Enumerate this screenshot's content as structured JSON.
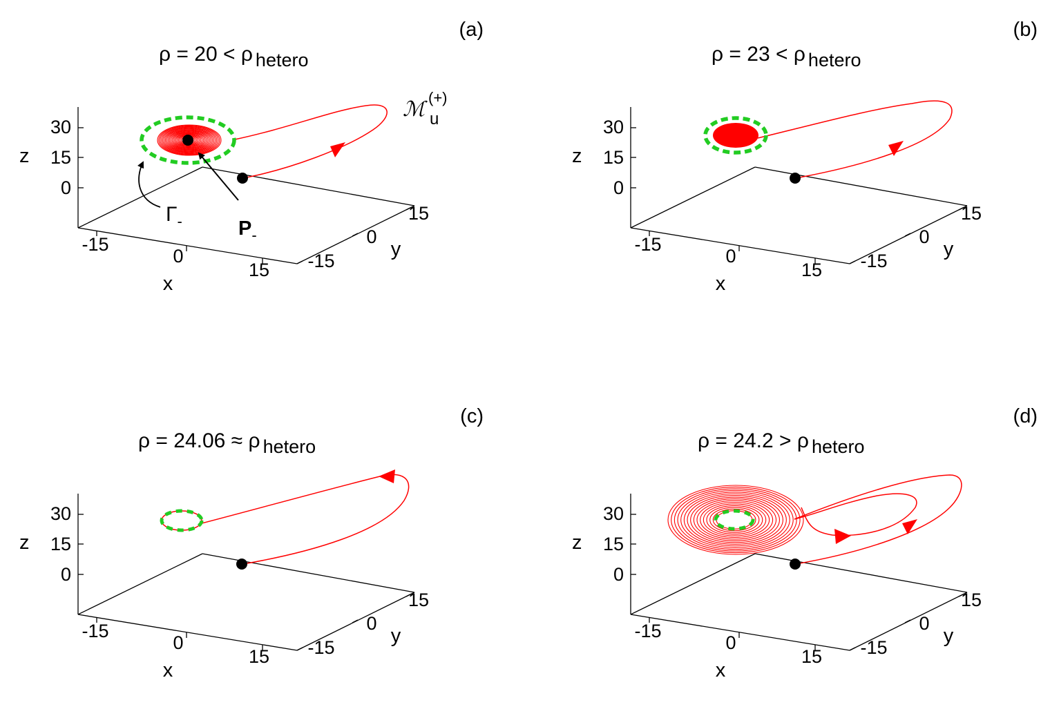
{
  "chart_data": [
    {
      "type": "line",
      "panel_label": "(a)",
      "title_rho": "ρ",
      "title_value": "= 20 <",
      "title_rho2": "ρ",
      "title_subscript": "hetero",
      "xlabel": "x",
      "ylabel": "y",
      "zlabel": "z",
      "x_ticks": [
        "-15",
        "0",
        "15"
      ],
      "y_ticks": [
        "-15",
        "0",
        "15"
      ],
      "z_ticks": [
        "0",
        "15",
        "30"
      ],
      "annotations": {
        "manifold": "ℳ",
        "manifold_sup": "(+)",
        "manifold_sub": "u",
        "gamma": "Γ",
        "gamma_sub": "-",
        "point": "P",
        "point_sub": "-"
      },
      "colors": {
        "orbit": "#ff0000",
        "cycle": "#22cc22",
        "point": "#000000"
      }
    },
    {
      "type": "line",
      "panel_label": "(b)",
      "title_rho": "ρ",
      "title_value": "= 23 <",
      "title_rho2": "ρ",
      "title_subscript": "hetero",
      "xlabel": "x",
      "ylabel": "y",
      "zlabel": "z",
      "x_ticks": [
        "-15",
        "0",
        "15"
      ],
      "y_ticks": [
        "-15",
        "0",
        "15"
      ],
      "z_ticks": [
        "0",
        "15",
        "30"
      ]
    },
    {
      "type": "line",
      "panel_label": "(c)",
      "title_rho": "ρ",
      "title_value": "= 24.06",
      "title_approx": "≈",
      "title_rho2": "ρ",
      "title_subscript": "hetero",
      "xlabel": "x",
      "ylabel": "y",
      "zlabel": "z",
      "x_ticks": [
        "-15",
        "0",
        "15"
      ],
      "y_ticks": [
        "-15",
        "0",
        "15"
      ],
      "z_ticks": [
        "0",
        "15",
        "30"
      ]
    },
    {
      "type": "line",
      "panel_label": "(d)",
      "title_rho": "ρ",
      "title_value": "= 24.2 >",
      "title_rho2": "ρ",
      "title_subscript": "hetero",
      "xlabel": "x",
      "ylabel": "y",
      "zlabel": "z",
      "x_ticks": [
        "-15",
        "0",
        "15"
      ],
      "y_ticks": [
        "-15",
        "0",
        "15"
      ],
      "z_ticks": [
        "0",
        "15",
        "30"
      ]
    }
  ]
}
